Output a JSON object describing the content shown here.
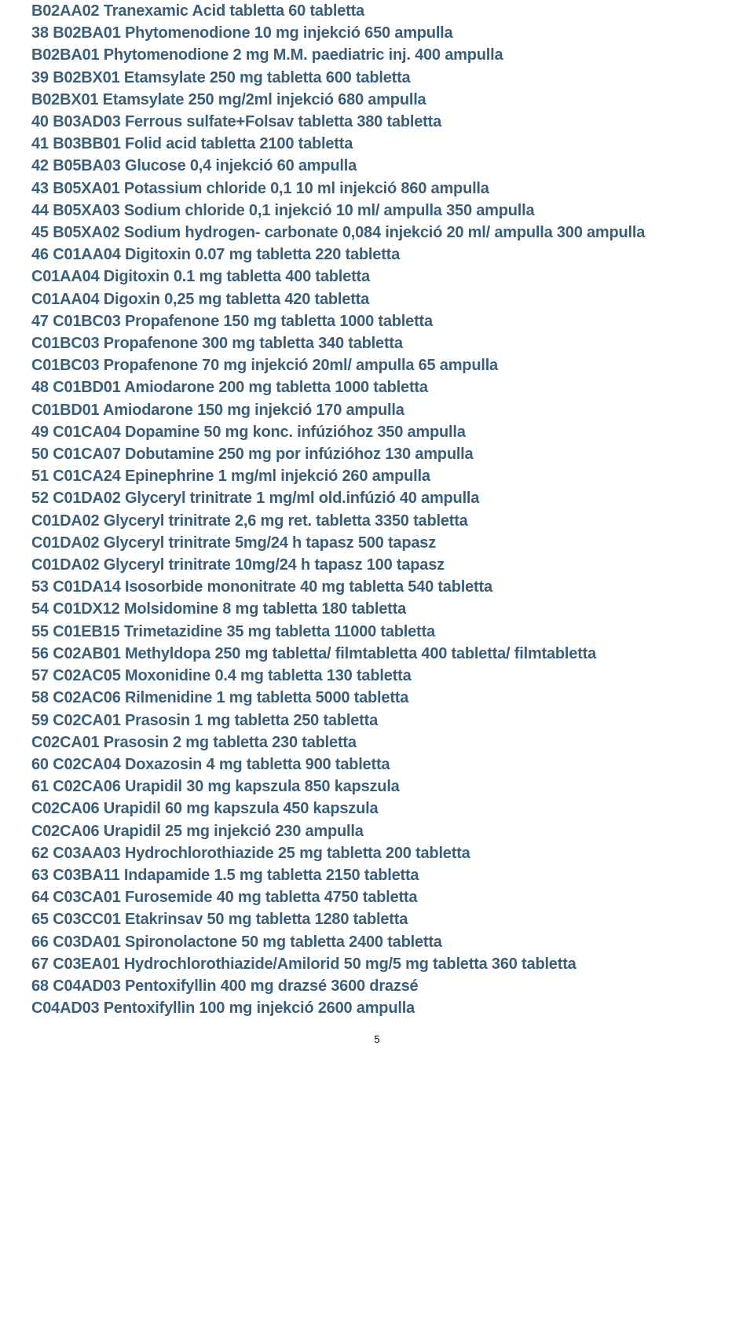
{
  "text_color": "#3b5e79",
  "background_color": "#ffffff",
  "font_size": 20,
  "font_weight": 700,
  "line_height": 28.2,
  "page_number": "5",
  "lines": [
    "B02AA02 Tranexamic Acid tabletta 60 tabletta",
    "38 B02BA01 Phytomenodione 10 mg injekció 650 ampulla",
    "B02BA01 Phytomenodione 2 mg M.M. paediatric inj. 400 ampulla",
    "39 B02BX01 Etamsylate 250 mg tabletta 600 tabletta",
    "B02BX01 Etamsylate 250 mg/2ml injekció 680 ampulla",
    "40 B03AD03 Ferrous sulfate+Folsav tabletta 380 tabletta",
    "41 B03BB01 Folid acid tabletta 2100 tabletta",
    "42 B05BA03 Glucose 0,4 injekció 60 ampulla",
    "43 B05XA01 Potassium chloride 0,1 10 ml injekció 860 ampulla",
    "44 B05XA03 Sodium chloride 0,1 injekció 10 ml/ ampulla 350 ampulla",
    "45 B05XA02 Sodium hydrogen- carbonate 0,084 injekció 20 ml/ ampulla 300 ampulla",
    "46 C01AA04 Digitoxin 0.07 mg tabletta 220 tabletta",
    "C01AA04 Digitoxin 0.1 mg tabletta 400 tabletta",
    "C01AA04 Digoxin 0,25 mg tabletta 420 tabletta",
    "47 C01BC03 Propafenone 150 mg tabletta 1000 tabletta",
    "C01BC03 Propafenone 300 mg tabletta 340 tabletta",
    "C01BC03 Propafenone 70 mg injekció 20ml/ ampulla 65 ampulla",
    "48 C01BD01 Amiodarone 200 mg tabletta 1000 tabletta",
    "C01BD01 Amiodarone 150 mg injekció 170 ampulla",
    "49 C01CA04 Dopamine 50 mg konc. infúzióhoz 350 ampulla",
    "50 C01CA07 Dobutamine 250 mg por infúzióhoz 130 ampulla",
    "51 C01CA24 Epinephrine 1 mg/ml injekció 260 ampulla",
    "52 C01DA02 Glyceryl trinitrate 1 mg/ml old.infúzió 40 ampulla",
    "C01DA02 Glyceryl trinitrate 2,6 mg ret. tabletta 3350 tabletta",
    "C01DA02 Glyceryl trinitrate 5mg/24 h tapasz 500 tapasz",
    "C01DA02 Glyceryl trinitrate 10mg/24 h tapasz 100 tapasz",
    "53 C01DA14 Isosorbide mononitrate 40 mg tabletta 540 tabletta",
    "54 C01DX12 Molsidomine 8 mg tabletta 180 tabletta",
    "55 C01EB15 Trimetazidine 35 mg tabletta 11000 tabletta",
    "56 C02AB01 Methyldopa 250 mg tabletta/ filmtabletta 400 tabletta/ filmtabletta",
    "57 C02AC05 Moxonidine 0.4 mg tabletta 130 tabletta",
    "58 C02AC06 Rilmenidine 1 mg tabletta 5000 tabletta",
    "59 C02CA01 Prasosin 1 mg tabletta 250 tabletta",
    "C02CA01 Prasosin 2 mg tabletta 230 tabletta",
    "60 C02CA04 Doxazosin 4 mg tabletta 900 tabletta",
    "61 C02CA06 Urapidil 30 mg kapszula 850 kapszula",
    "C02CA06 Urapidil 60 mg kapszula 450 kapszula",
    "C02CA06 Urapidil 25 mg injekció 230 ampulla",
    "62 C03AA03 Hydrochlorothiazide 25 mg tabletta 200 tabletta",
    "63 C03BA11 Indapamide 1.5 mg tabletta 2150 tabletta",
    "64 C03CA01 Furosemide 40 mg tabletta 4750 tabletta",
    "65 C03CC01 Etakrinsav 50 mg tabletta 1280 tabletta",
    "66 C03DA01 Spironolactone 50 mg tabletta 2400 tabletta",
    "67 C03EA01 Hydrochlorothiazide/Amilorid 50 mg/5 mg tabletta 360 tabletta",
    "68 C04AD03 Pentoxifyllin 400 mg drazsé 3600 drazsé",
    "C04AD03 Pentoxifyllin 100 mg injekció 2600 ampulla"
  ]
}
